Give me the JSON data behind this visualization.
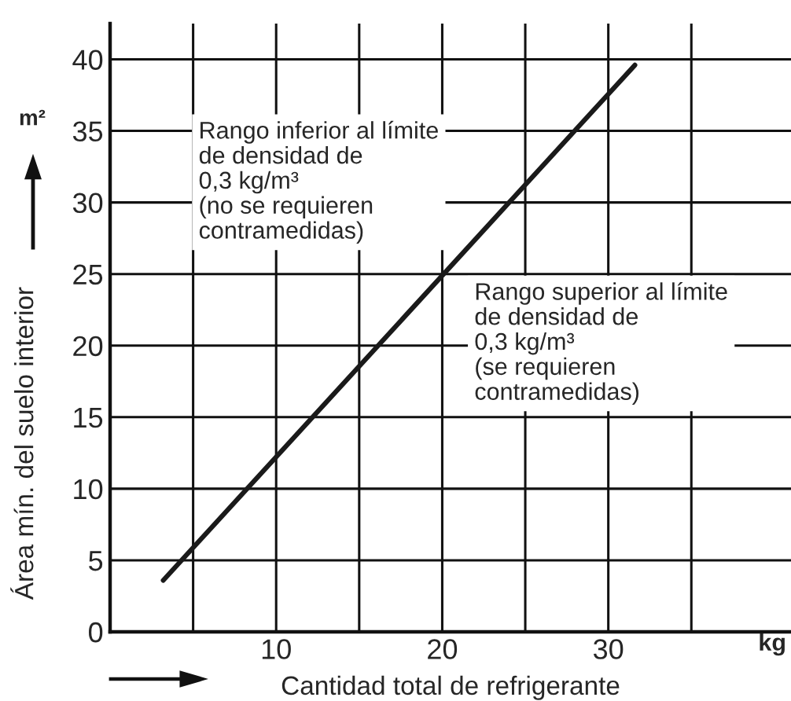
{
  "chart_data": {
    "type": "line",
    "xlabel": "Cantidad total de refrigerante",
    "ylabel": "Área mín. del suelo interior",
    "x": [
      3.2,
      31.6
    ],
    "series": [
      {
        "color": "#1a1a1a",
        "values": [
          3.6,
          39.6
        ]
      }
    ],
    "xlim": [
      0,
      41
    ],
    "ylim": [
      0,
      42.5
    ],
    "xticks": [
      {
        "value": 5,
        "label": null
      },
      10,
      {
        "value": 15,
        "label": null
      },
      20,
      {
        "value": 25,
        "label": null
      },
      30,
      {
        "value": 35,
        "label": null
      }
    ],
    "yticks": [
      0,
      5,
      10,
      15,
      20,
      25,
      30,
      35,
      40
    ],
    "grid": true,
    "marker": "none",
    "line_style": "solid",
    "annotations": [
      "m²",
      "kg",
      "Rango inferior al límite\nde densidad de\n0,3 kg/m³\n(no se requieren\ncontramedidas)",
      "Rango superior al límite\nde densidad de\n0,3 kg/m³\n(se requieren\ncontramedidas)"
    ]
  }
}
